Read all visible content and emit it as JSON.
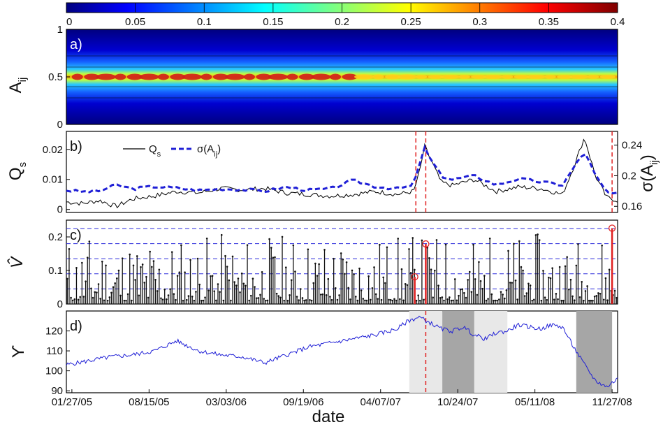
{
  "chart_data": [
    {
      "panel": "a)",
      "type": "heatmap",
      "ylabel": "A",
      "ylabel_sub": "ij",
      "ylim": [
        0,
        1
      ],
      "yticks": [
        "0",
        "0.5",
        "1"
      ],
      "colorbar": {
        "range": [
          0,
          0.4
        ],
        "ticks": [
          "0",
          "0.05",
          "0.1",
          "0.15",
          "0.2",
          "0.25",
          "0.3",
          "0.35",
          "0.4"
        ]
      }
    },
    {
      "panel": "b)",
      "type": "line",
      "ylabel": "Q",
      "ylabel_sub": "s",
      "ylim": [
        -0.001,
        0.026
      ],
      "yticks": [
        "0",
        "0.01",
        "0.02"
      ],
      "y2label": "σ(A",
      "y2label_sub": "ij",
      "y2label_end": ")",
      "y2ticks": [
        "0.16",
        "0.2",
        "0.24"
      ],
      "legend": {
        "position": "top-left"
      },
      "series": [
        {
          "name": "Q",
          "name_sub": "s",
          "color": "#000000",
          "style": "solid",
          "x": [
            0,
            0.03,
            0.06,
            0.09,
            0.12,
            0.16,
            0.2,
            0.24,
            0.28,
            0.32,
            0.36,
            0.4,
            0.44,
            0.48,
            0.52,
            0.56,
            0.6,
            0.63,
            0.64,
            0.65,
            0.66,
            0.68,
            0.7,
            0.74,
            0.78,
            0.82,
            0.86,
            0.9,
            0.92,
            0.94,
            0.96,
            0.98,
            1.0
          ],
          "y": [
            0.0025,
            0.002,
            0.003,
            0.001,
            0.0035,
            0.0045,
            0.006,
            0.0055,
            0.007,
            0.0065,
            0.007,
            0.0055,
            0.005,
            0.0045,
            0.005,
            0.006,
            0.005,
            0.006,
            0.012,
            0.021,
            0.017,
            0.009,
            0.008,
            0.01,
            0.006,
            0.0075,
            0.007,
            0.005,
            0.014,
            0.024,
            0.011,
            0.004,
            0.003
          ]
        },
        {
          "name": "σ(A",
          "name_sub": "ij",
          "name_end": ")",
          "color": "#1f1fd6",
          "style": "dashed",
          "x": [
            0,
            0.03,
            0.06,
            0.09,
            0.12,
            0.16,
            0.2,
            0.24,
            0.28,
            0.32,
            0.36,
            0.4,
            0.44,
            0.48,
            0.52,
            0.56,
            0.6,
            0.63,
            0.64,
            0.65,
            0.66,
            0.68,
            0.7,
            0.74,
            0.78,
            0.82,
            0.86,
            0.9,
            0.92,
            0.94,
            0.96,
            0.98,
            1.0
          ],
          "y": [
            0.181,
            0.179,
            0.18,
            0.188,
            0.183,
            0.186,
            0.184,
            0.181,
            0.183,
            0.182,
            0.18,
            0.185,
            0.181,
            0.183,
            0.194,
            0.186,
            0.183,
            0.187,
            0.215,
            0.236,
            0.222,
            0.2,
            0.195,
            0.2,
            0.188,
            0.196,
            0.192,
            0.188,
            0.21,
            0.232,
            0.2,
            0.178,
            0.176
          ]
        }
      ],
      "vlines_x": [
        0.634,
        0.652,
        0.99
      ]
    },
    {
      "panel": "c)",
      "type": "bar",
      "ylabel": "V̂",
      "ylim": [
        0,
        0.25
      ],
      "yticks": [
        "0",
        "0.1",
        "0.2"
      ],
      "hlines_y": [
        0.045,
        0.09,
        0.135,
        0.18,
        0.225
      ],
      "highlighted": [
        {
          "x": 0.632,
          "y": 0.081
        },
        {
          "x": 0.652,
          "y": 0.179
        },
        {
          "x": 0.99,
          "y": 0.226
        }
      ]
    },
    {
      "panel": "d)",
      "type": "line",
      "ylabel": "ϒ",
      "ylim": [
        89,
        130
      ],
      "yticks": [
        "90",
        "100",
        "110",
        "120"
      ],
      "xlabel": "date",
      "xticks": [
        "01/27/05",
        "08/15/05",
        "03/03/06",
        "09/19/06",
        "04/07/07",
        "10/24/07",
        "05/11/08",
        "11/27/08"
      ],
      "series": [
        {
          "name": "",
          "color": "#1f1fd6",
          "x": [
            0,
            0.04,
            0.08,
            0.12,
            0.16,
            0.2,
            0.24,
            0.28,
            0.32,
            0.36,
            0.4,
            0.44,
            0.48,
            0.52,
            0.56,
            0.6,
            0.62,
            0.64,
            0.66,
            0.68,
            0.7,
            0.72,
            0.74,
            0.76,
            0.78,
            0.8,
            0.82,
            0.84,
            0.86,
            0.88,
            0.9,
            0.92,
            0.94,
            0.96,
            0.98,
            1.0
          ],
          "y": [
            103,
            105,
            107,
            108,
            110,
            115,
            110,
            108,
            107,
            104,
            108,
            112,
            114,
            116,
            118,
            121,
            125,
            127,
            124,
            121,
            120,
            122,
            118,
            116,
            119,
            120,
            123,
            122,
            121,
            123,
            122,
            112,
            103,
            95,
            92,
            96
          ]
        }
      ],
      "shaded_regions": [
        {
          "x": [
            0.622,
            0.682
          ],
          "shade": "light"
        },
        {
          "x": [
            0.682,
            0.74
          ],
          "shade": "dark"
        },
        {
          "x": [
            0.74,
            0.8
          ],
          "shade": "light"
        },
        {
          "x": [
            0.925,
            0.99
          ],
          "shade": "dark"
        }
      ],
      "vlines_x": [
        0.652
      ]
    }
  ]
}
